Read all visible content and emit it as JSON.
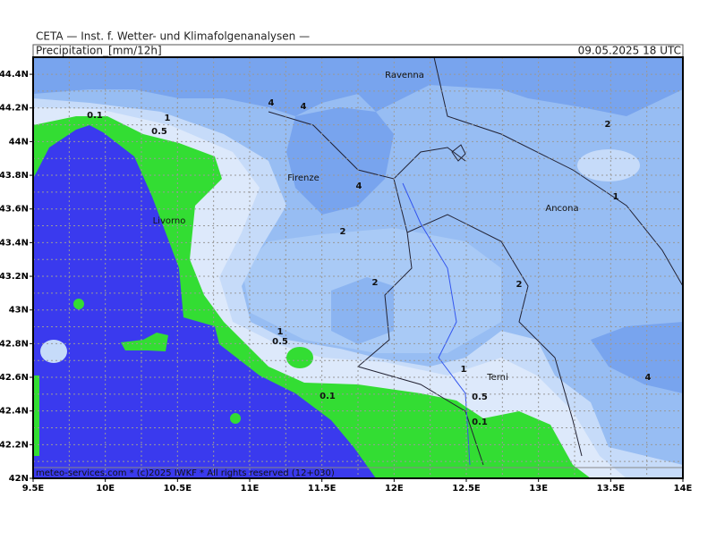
{
  "header": {
    "institute": "CETA — Inst. f. Wetter- und Klimafolgenanalysen —",
    "title": "Precipitation_[mm/12h]",
    "timestamp": "09.05.2025 18 UTC"
  },
  "map": {
    "lat_labels": [
      "44.4N",
      "44.2N",
      "44N",
      "43.8N",
      "43.6N",
      "43.4N",
      "43.2N",
      "43N",
      "42.8N",
      "42.6N",
      "42.4N",
      "42.2N",
      "42N"
    ],
    "lon_labels": [
      "9.5E",
      "10E",
      "10.5E",
      "11E",
      "11.5E",
      "12E",
      "12.5E",
      "13E",
      "13.5E",
      "14E"
    ],
    "cities": [
      "Ravenna",
      "Firenze",
      "Livorno",
      "Ancona",
      "Terni"
    ],
    "contour_labels": [
      "0.1",
      "1",
      "0.5",
      "4",
      "4",
      "4",
      "2",
      "2",
      "1",
      "2",
      "2",
      "1",
      "0.5",
      "0.1",
      "1",
      "0.5",
      "0.1",
      "4"
    ],
    "footer": "meteo-services.com * (c)2025 IWKF * All rights reserved (12+030)"
  }
}
